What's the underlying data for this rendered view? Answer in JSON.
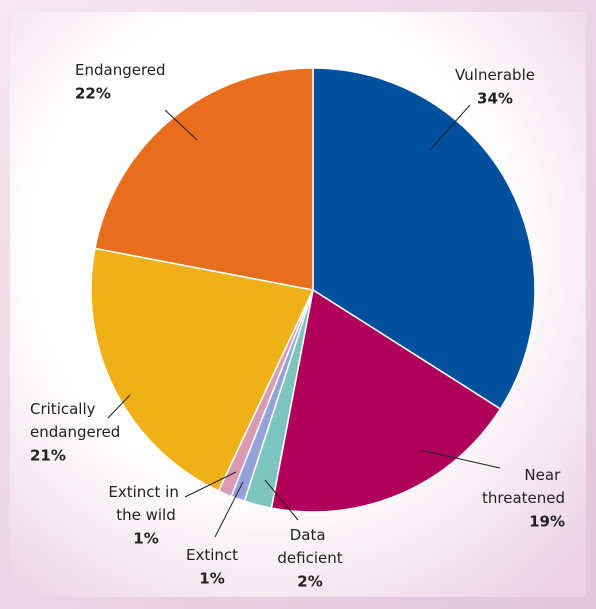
{
  "chart_data": {
    "type": "pie",
    "categories": [
      "Vulnerable",
      "Near threatened",
      "Data deficient",
      "Extinct",
      "Extinct in the wild",
      "Critically endangered",
      "Endangered"
    ],
    "values": [
      34,
      19,
      2,
      1,
      1,
      21,
      22
    ],
    "value_labels": [
      "34%",
      "19%",
      "2%",
      "1%",
      "1%",
      "21%",
      "22%"
    ],
    "colors": [
      "#00509e",
      "#b0005c",
      "#7ec4be",
      "#93a3da",
      "#d99bb3",
      "#efb117",
      "#e86d1f"
    ]
  }
}
